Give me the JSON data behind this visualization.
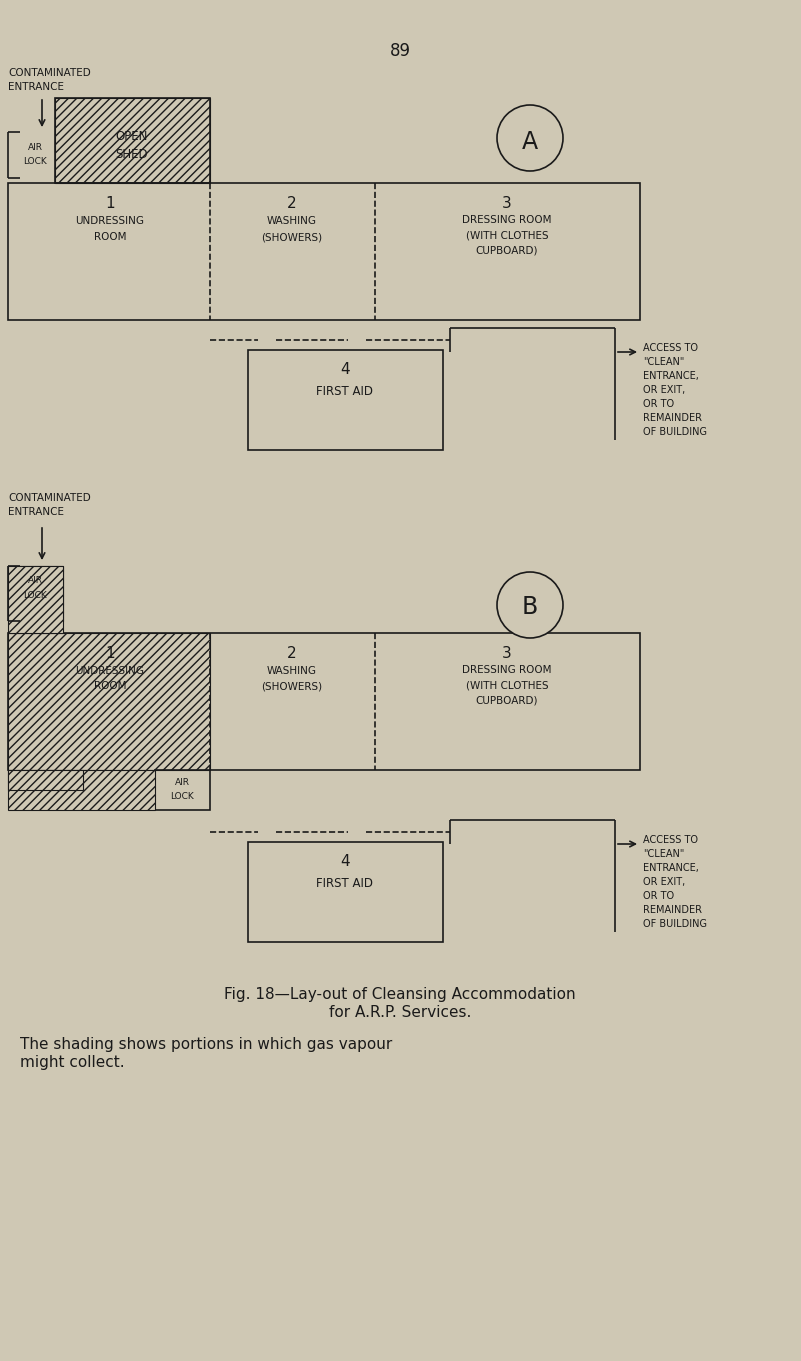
{
  "bg_color": "#cfc8b4",
  "line_color": "#1a1a1a",
  "page_number": "89",
  "fig_caption_line1": "Fig. 18—Lay-out of Cleansing Accommodation",
  "fig_caption_line2": "for A.R.P. Services.",
  "fig_note_line1": "The shading shows portions in which gas vapour",
  "fig_note_line2": "might collect."
}
